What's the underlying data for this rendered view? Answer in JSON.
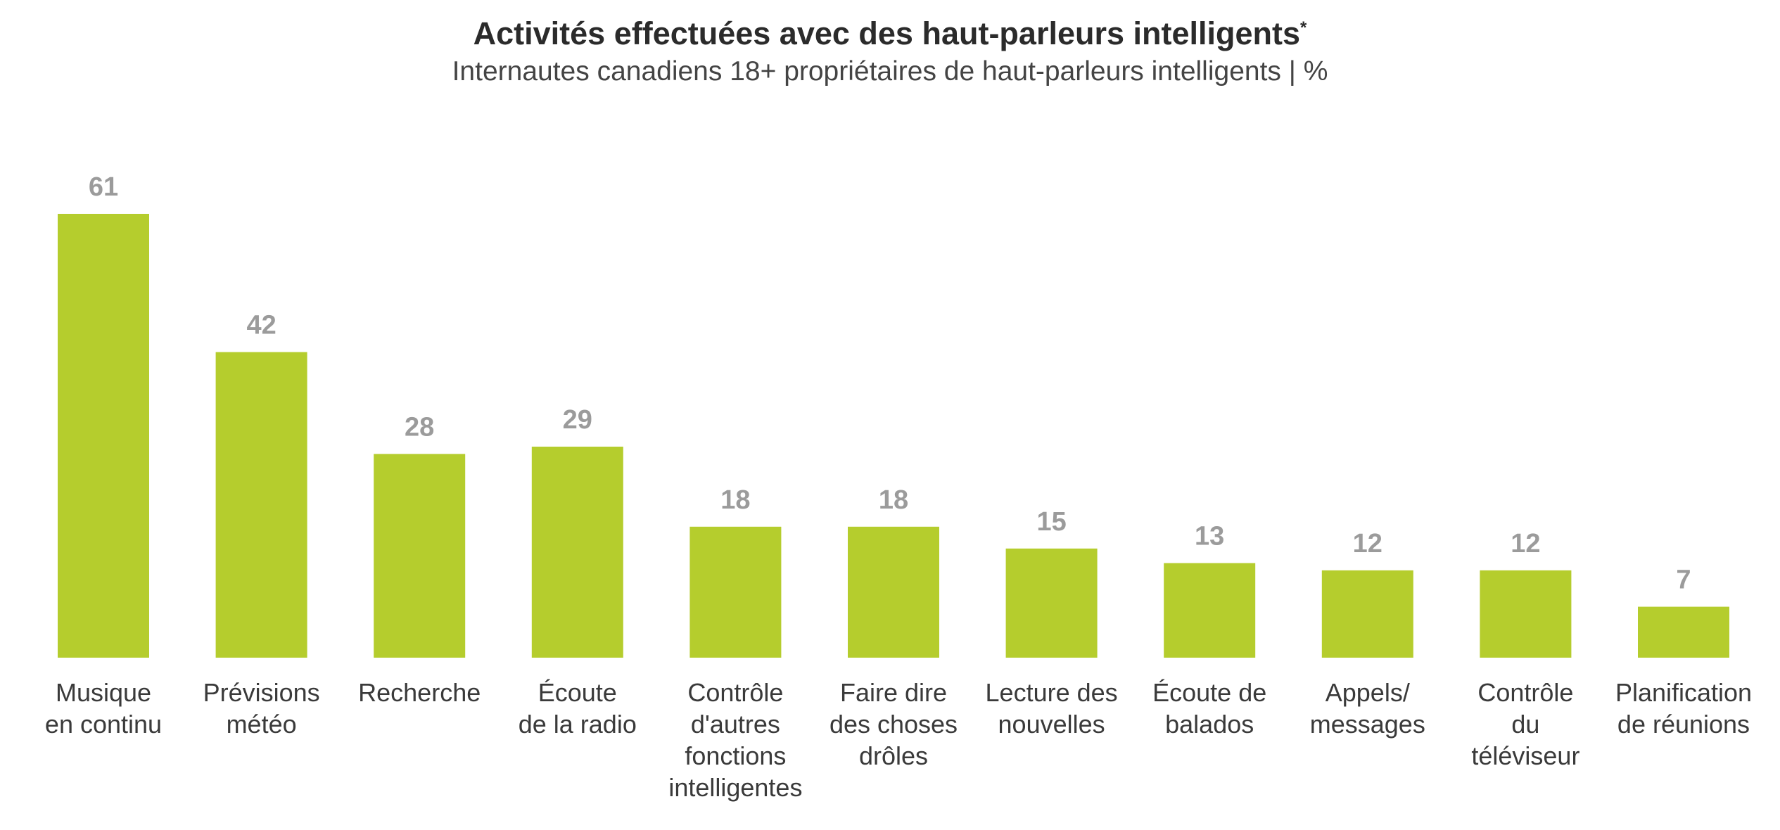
{
  "chart_data": {
    "type": "bar",
    "title": "Activités effectuées avec des haut-parleurs intelligents",
    "title_marker": "*",
    "subtitle": "Internautes canadiens 18+ propriétaires de haut-parleurs intelligents | %",
    "xlabel": "",
    "ylabel": "",
    "ylim": [
      0,
      61
    ],
    "grid": false,
    "bar_color": "#b5cd2d",
    "categories": [
      [
        "Musique",
        "en continu"
      ],
      [
        "Prévisions",
        "météo"
      ],
      [
        "Recherche"
      ],
      [
        "Écoute",
        "de la radio"
      ],
      [
        "Contrôle",
        "d'autres",
        "fonctions",
        "intelligentes"
      ],
      [
        "Faire dire",
        "des choses",
        "drôles"
      ],
      [
        "Lecture des",
        "nouvelles"
      ],
      [
        "Écoute de",
        "balados"
      ],
      [
        "Appels/",
        "messages"
      ],
      [
        "Contrôle",
        "du",
        "téléviseur"
      ],
      [
        "Planification",
        "de réunions"
      ]
    ],
    "values": [
      61,
      42,
      28,
      29,
      18,
      18,
      15,
      13,
      12,
      12,
      7
    ]
  }
}
